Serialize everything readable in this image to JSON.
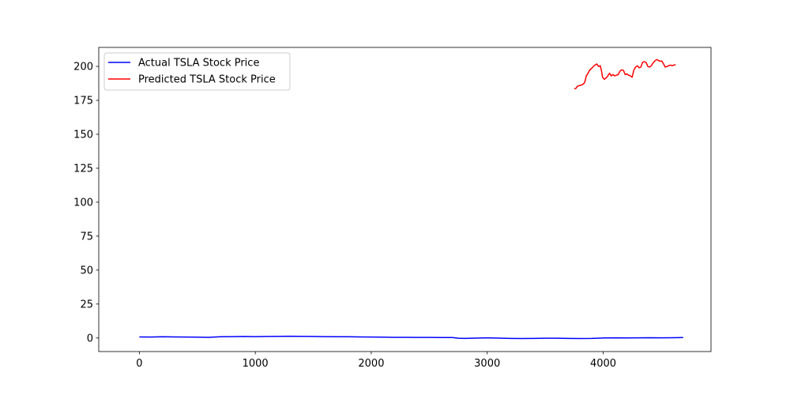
{
  "chart_data": {
    "type": "line",
    "title": "",
    "xlabel": "",
    "ylabel": "",
    "xlim": [
      -350,
      4930
    ],
    "ylim": [
      -10,
      214
    ],
    "xticks": [
      0,
      1000,
      2000,
      3000,
      4000
    ],
    "yticks": [
      0,
      25,
      50,
      75,
      100,
      125,
      150,
      175,
      200
    ],
    "legend": {
      "position": "top-left"
    },
    "grid": false,
    "series": [
      {
        "name": "Actual TSLA Stock Price",
        "color": "#0000ff",
        "x": [
          0,
          100,
          200,
          300,
          400,
          500,
          600,
          700,
          800,
          900,
          1000,
          1100,
          1200,
          1300,
          1400,
          1500,
          1600,
          1700,
          1800,
          1900,
          2000,
          2100,
          2200,
          2300,
          2400,
          2500,
          2600,
          2700,
          2750,
          2800,
          2900,
          3000,
          3100,
          3200,
          3300,
          3400,
          3500,
          3600,
          3700,
          3800,
          3900,
          4000,
          4100,
          4200,
          4300,
          4400,
          4500,
          4600,
          4690
        ],
        "y": [
          0.8,
          0.7,
          0.9,
          0.8,
          0.7,
          0.6,
          0.5,
          0.9,
          1.0,
          1.1,
          1.0,
          1.1,
          1.2,
          1.3,
          1.2,
          1.1,
          1.0,
          0.9,
          0.9,
          0.8,
          0.7,
          0.6,
          0.5,
          0.5,
          0.4,
          0.4,
          0.3,
          0.3,
          -0.2,
          -0.3,
          -0.1,
          0.1,
          -0.1,
          -0.3,
          -0.4,
          -0.3,
          -0.2,
          -0.2,
          -0.3,
          -0.4,
          -0.3,
          0.0,
          0.1,
          0.0,
          0.1,
          0.2,
          0.1,
          0.2,
          0.3
        ]
      },
      {
        "name": "Predicted TSLA Stock Price",
        "color": "#ff0000",
        "x": [
          3750,
          3765,
          3780,
          3800,
          3820,
          3840,
          3855,
          3870,
          3885,
          3900,
          3915,
          3930,
          3945,
          3960,
          3975,
          3985,
          3995,
          4010,
          4025,
          4040,
          4055,
          4070,
          4085,
          4100,
          4115,
          4130,
          4145,
          4160,
          4175,
          4190,
          4205,
          4220,
          4235,
          4250,
          4265,
          4280,
          4295,
          4310,
          4325,
          4340,
          4355,
          4370,
          4385,
          4400,
          4415,
          4430,
          4445,
          4460,
          4475,
          4490,
          4505,
          4520,
          4535,
          4550,
          4565,
          4580,
          4595,
          4610,
          4625
        ],
        "y": [
          183.5,
          183.8,
          185.5,
          186.0,
          186.5,
          188.0,
          193.0,
          195.0,
          197.5,
          198.5,
          200.0,
          201.0,
          201.8,
          200.0,
          200.5,
          197.0,
          192.0,
          190.5,
          191.5,
          193.0,
          195.0,
          193.0,
          194.0,
          193.0,
          193.5,
          194.0,
          196.5,
          197.5,
          197.0,
          194.0,
          194.5,
          193.5,
          193.0,
          192.0,
          197.5,
          199.5,
          200.5,
          199.0,
          199.5,
          203.0,
          203.5,
          203.0,
          200.0,
          199.5,
          200.5,
          202.5,
          204.0,
          205.0,
          204.5,
          203.8,
          204.0,
          202.0,
          199.5,
          200.0,
          200.5,
          201.0,
          200.5,
          201.0,
          201.2
        ]
      }
    ]
  }
}
